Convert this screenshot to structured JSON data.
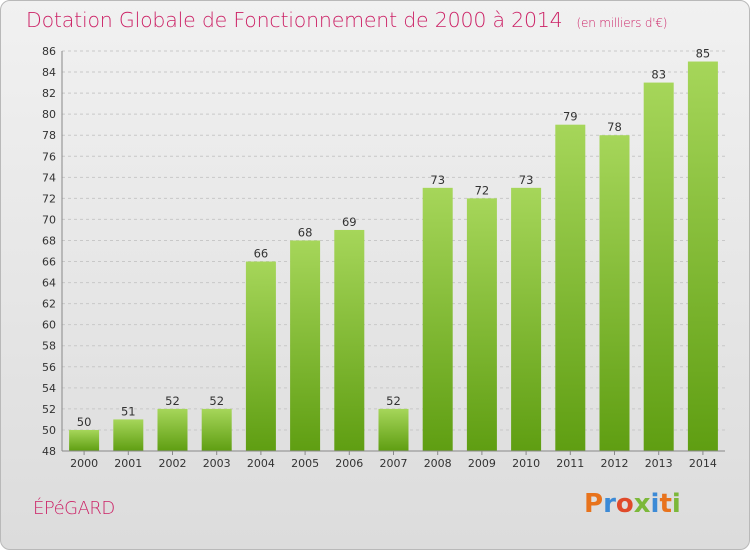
{
  "header": {
    "title": "Dotation Globale de Fonctionnement de 2000 à 2014",
    "subtitle": "(en milliers d'€)"
  },
  "footer": {
    "commune": "ÉPéGARD",
    "brand": "Proxiti",
    "brand_colors": [
      "#e8731c",
      "#3c8ad6",
      "#e04a2a",
      "#7cb83a",
      "#3c8ad6",
      "#e8731c",
      "#7cb83a"
    ]
  },
  "colors": {
    "bar_top": "#a6d65a",
    "bar_bottom": "#5f9e12",
    "accent": "#cc2266"
  },
  "chart_data": {
    "type": "bar",
    "categories": [
      "2000",
      "2001",
      "2002",
      "2003",
      "2004",
      "2005",
      "2006",
      "2007",
      "2008",
      "2009",
      "2010",
      "2011",
      "2012",
      "2013",
      "2014"
    ],
    "values": [
      50,
      51,
      52,
      52,
      66,
      68,
      69,
      52,
      73,
      72,
      73,
      79,
      78,
      83,
      85
    ],
    "title": "Dotation Globale de Fonctionnement de 2000 à 2014",
    "subtitle": "(en milliers d'€)",
    "xlabel": "",
    "ylabel": "",
    "ylim": [
      48,
      86
    ],
    "yticks": [
      48,
      50,
      52,
      54,
      56,
      58,
      60,
      62,
      64,
      66,
      68,
      70,
      72,
      74,
      76,
      78,
      80,
      82,
      84,
      86
    ],
    "grid": true,
    "data_labels": true
  }
}
